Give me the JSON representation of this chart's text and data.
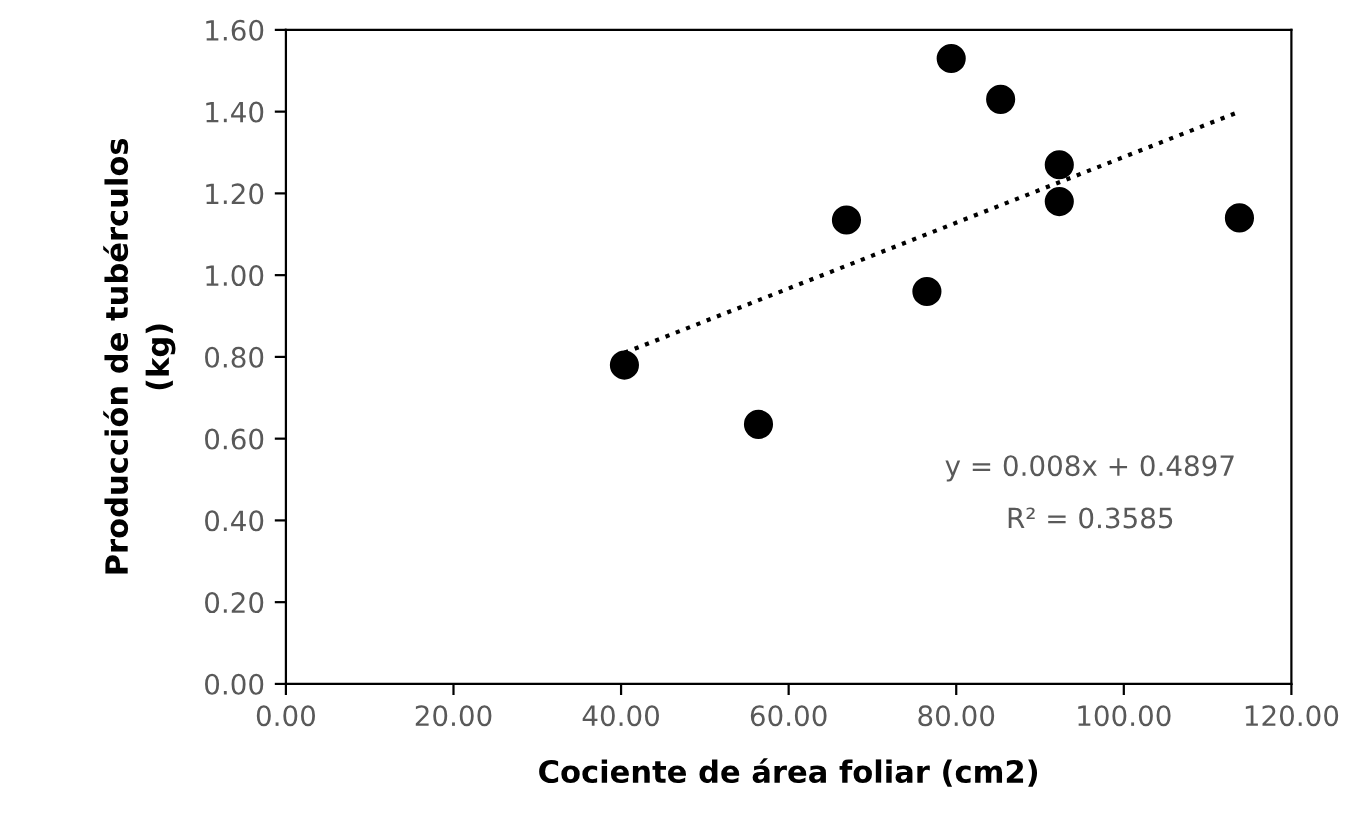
{
  "chart_data": {
    "type": "scatter",
    "xlabel": "Cociente de área foliar (cm2)",
    "ylabel": "Producción de tubérculos\n(kg)",
    "xlim": [
      0,
      120
    ],
    "xticks": [
      {
        "value": 0,
        "label": "0.00"
      },
      {
        "value": 20,
        "label": "20.00"
      },
      {
        "value": 40,
        "label": "40.00"
      },
      {
        "value": 60,
        "label": "60.00"
      },
      {
        "value": 80,
        "label": "80.00"
      },
      {
        "value": 100,
        "label": "100.00"
      },
      {
        "value": 120,
        "label": "120.00"
      }
    ],
    "ylim": [
      0,
      1.6
    ],
    "yticks": [
      {
        "value": 0,
        "label": "0.00"
      },
      {
        "value": 0.2,
        "label": "0.20"
      },
      {
        "value": 0.4,
        "label": "0.40"
      },
      {
        "value": 0.6,
        "label": "0.60"
      },
      {
        "value": 0.8,
        "label": "0.80"
      },
      {
        "value": 1.0,
        "label": "1.00"
      },
      {
        "value": 1.2,
        "label": "1.20"
      },
      {
        "value": 1.4,
        "label": "1.40"
      },
      {
        "value": 1.6,
        "label": "1.60"
      }
    ],
    "grid": false,
    "legend": false,
    "marker": "circle",
    "series": [
      {
        "color": "#000000",
        "x": [
          40.4,
          56.4,
          66.9,
          76.5,
          79.4,
          85.3,
          92.3,
          92.3,
          113.8
        ],
        "values": [
          0.78,
          0.635,
          1.135,
          0.96,
          1.53,
          1.43,
          1.27,
          1.18,
          1.14
        ]
      },
      {
        "type": "line",
        "color": "#000000",
        "line_style": "dotted",
        "marker": "none",
        "x": [
          40.4,
          113.8
        ],
        "values": [
          0.81,
          1.4
        ]
      }
    ],
    "annotations": [
      "y = 0.008x + 0.4897",
      "R² = 0.3585"
    ]
  }
}
